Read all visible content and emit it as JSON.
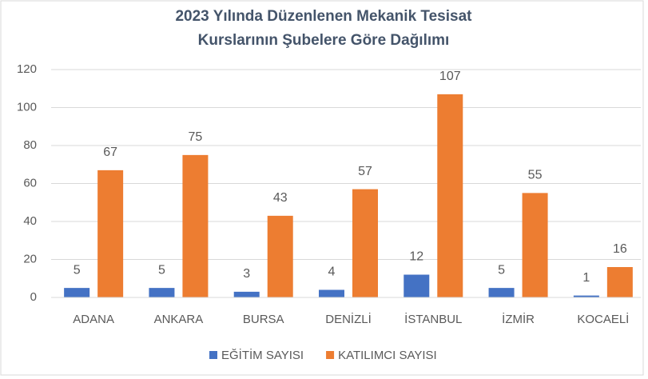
{
  "chart_data": {
    "type": "bar",
    "title": "2023 Yılında Düzenlenen Mekanik Tesisat Kurslarının Şubelere Göre Dağılımı",
    "categories": [
      "ADANA",
      "ANKARA",
      "BURSA",
      "DENİZLİ",
      "İSTANBUL",
      "İZMİR",
      "KOCAELİ"
    ],
    "series": [
      {
        "name": "EĞİTİM SAYISI",
        "color": "#4472c4",
        "values": [
          5,
          5,
          3,
          4,
          12,
          5,
          1
        ]
      },
      {
        "name": "KATILIMCI SAYISI",
        "color": "#ed7d31",
        "values": [
          67,
          75,
          43,
          57,
          107,
          55,
          16
        ]
      }
    ],
    "ylim": [
      0,
      120
    ],
    "yticks": [
      0,
      20,
      40,
      60,
      80,
      100,
      120
    ],
    "grid": true,
    "legend": "bottom"
  }
}
